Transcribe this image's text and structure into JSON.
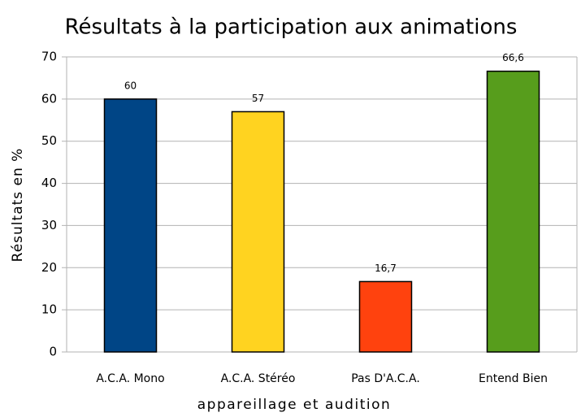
{
  "chart_data": {
    "type": "bar",
    "title": "Résultats à la participation aux animations",
    "x_label": "appareillage et audition",
    "y_label": "Résultats en %",
    "categories": [
      "A.C.A. Mono",
      "A.C.A. Stéréo",
      "Pas D'A.C.A.",
      "Entend Bien"
    ],
    "values": [
      60,
      57,
      16.7,
      66.6
    ],
    "value_labels": [
      "60",
      "57",
      "16,7",
      "66,6"
    ],
    "colors": [
      "#004586",
      "#ffd320",
      "#ff420e",
      "#579d1c"
    ],
    "ylim": [
      0,
      70
    ],
    "yticks": [
      0,
      10,
      20,
      30,
      40,
      50,
      60,
      70
    ],
    "grid": true
  }
}
